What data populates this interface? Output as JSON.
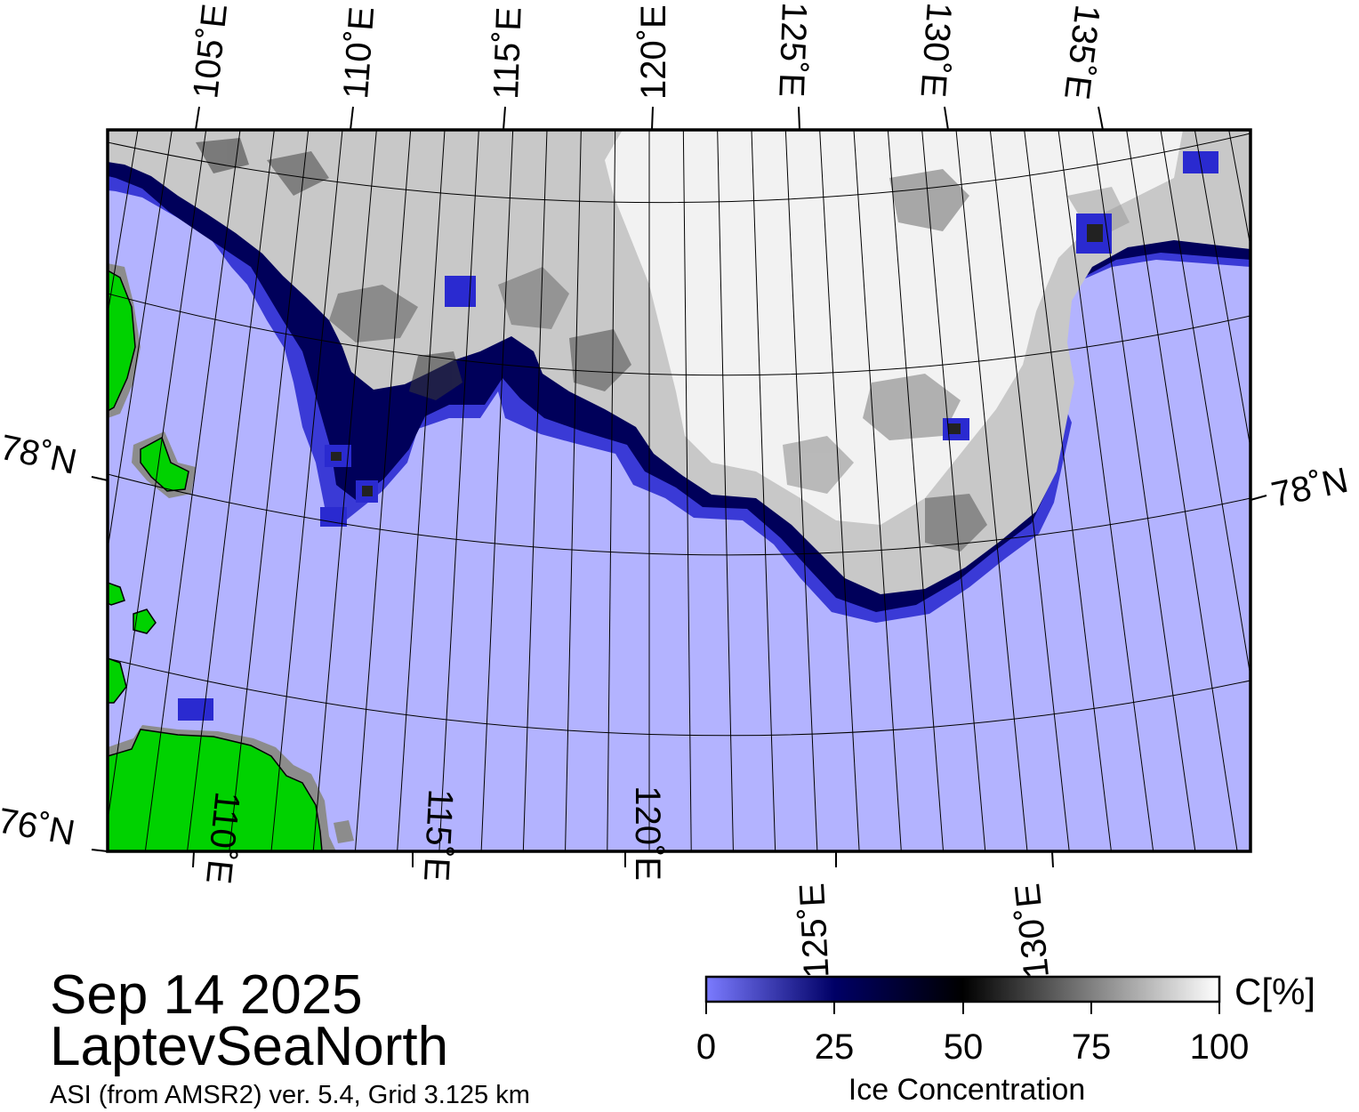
{
  "map": {
    "region": "LaptevSeaNorth",
    "colors": {
      "open_water": "#b3b3ff",
      "land": "#00d200",
      "land_mask": "#8c8c8c",
      "ice_low": "#000066",
      "ice_high": "#ffffff",
      "graticule": "#000000"
    },
    "top_axis_labels": [
      "105˚E",
      "110˚E",
      "115˚E",
      "120˚E",
      "125˚E",
      "130˚E",
      "135˚E"
    ],
    "bottom_axis_labels": [
      "110˚E",
      "115˚E",
      "120˚E",
      "125˚E",
      "130˚E"
    ],
    "left_axis_labels": [
      "78˚N",
      "76˚N"
    ],
    "right_axis_labels": [
      "78˚N"
    ]
  },
  "title": {
    "date": "Sep 14 2025",
    "region": "LaptevSeaNorth",
    "source": "ASI (from AMSR2) ver. 5.4,  Grid 3.125 km"
  },
  "colorbar": {
    "label": "Ice Concentration",
    "unit": "C[%]",
    "ticks": [
      "0",
      "25",
      "50",
      "75",
      "100"
    ],
    "min": 0,
    "max": 100,
    "stops": [
      "#7b7bff",
      "#000066",
      "#000000",
      "#ffffff"
    ]
  }
}
